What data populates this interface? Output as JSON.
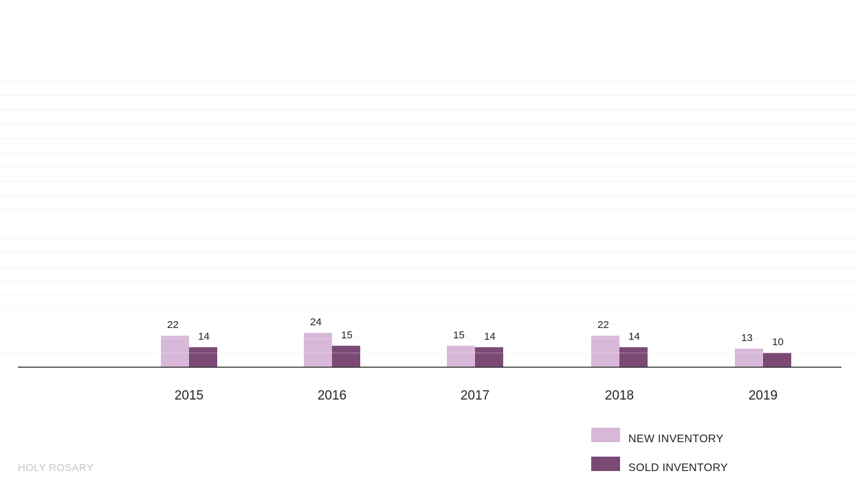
{
  "chart_data": {
    "type": "bar",
    "categories": [
      "2015",
      "2016",
      "2017",
      "2018",
      "2019"
    ],
    "series": [
      {
        "name": "NEW INVENTORY",
        "color": "#d8b8d8",
        "values": [
          22,
          24,
          15,
          22,
          13
        ]
      },
      {
        "name": "SOLD INVENTORY",
        "color": "#7a4a74",
        "values": [
          14,
          15,
          14,
          14,
          10
        ]
      }
    ],
    "ylim": [
      0,
      200
    ],
    "grid": true,
    "legend": "bottom-right"
  },
  "footer": {
    "label": "HOLY ROSARY"
  }
}
